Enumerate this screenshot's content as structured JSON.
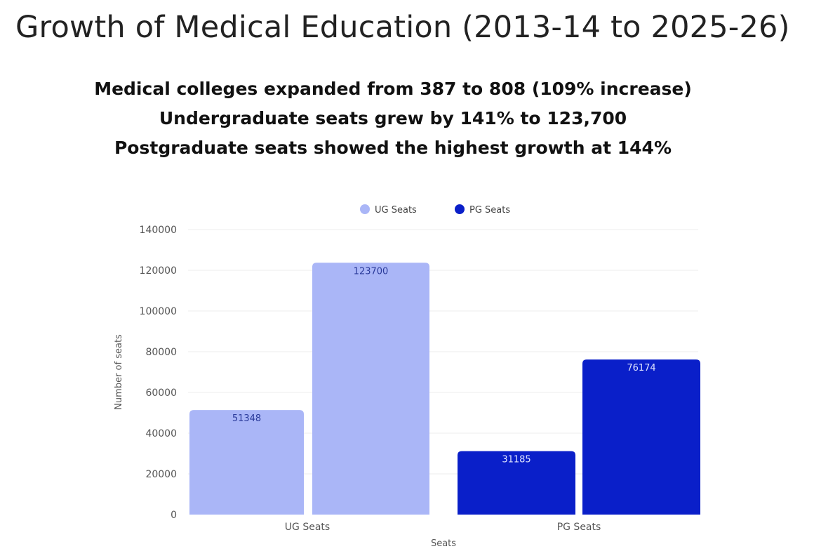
{
  "title": "Growth of Medical Education (2013-14 to 2025-26)",
  "highlights": [
    "Medical colleges expanded from 387 to 808 (109% increase)",
    "Undergraduate seats grew by 141% to 123,700",
    "Postgraduate seats showed the highest growth at 144%"
  ],
  "colors": {
    "ug": "#aab6f7",
    "pg": "#0a1fc9",
    "grid": "#ececec",
    "ug_label": "#2a3a9a",
    "pg_label": "#dfe4ff"
  },
  "chart_data": {
    "type": "bar",
    "title": "",
    "xlabel": "Seats",
    "ylabel": "Number of seats",
    "ylim": [
      0,
      140000
    ],
    "yticks": [
      0,
      20000,
      40000,
      60000,
      80000,
      100000,
      120000,
      140000
    ],
    "categories": [
      "UG Seats",
      "PG Seats"
    ],
    "legend": [
      "UG Seats",
      "PG Seats"
    ],
    "legend_position": "top-center",
    "bars": [
      {
        "category": "UG Seats",
        "series": "UG Seats",
        "value": 51348,
        "label": "51348"
      },
      {
        "category": "UG Seats",
        "series": "UG Seats",
        "value": 123700,
        "label": "123700"
      },
      {
        "category": "PG Seats",
        "series": "PG Seats",
        "value": 31185,
        "label": "31185"
      },
      {
        "category": "PG Seats",
        "series": "PG Seats",
        "value": 76174,
        "label": "76174"
      }
    ]
  }
}
